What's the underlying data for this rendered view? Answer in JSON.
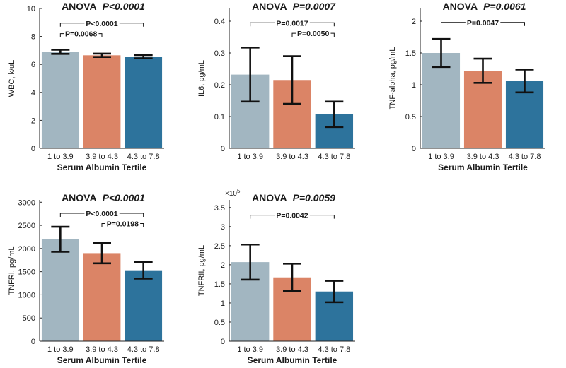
{
  "colors": {
    "tertile1": "#a2b6c1",
    "tertile2": "#db8466",
    "tertile3": "#2d739c",
    "axis": "#222222",
    "text": "#1a1a1a"
  },
  "chart_data": [
    {
      "type": "bar",
      "title_prefix": "ANOVA",
      "title_p": "P<0.0001",
      "xlabel": "Serum Albumin Tertile",
      "ylabel": "WBC, k/uL",
      "categories": [
        "1 to 3.9",
        "3.9 to 4.3",
        "4.3 to 7.8"
      ],
      "values": [
        6.9,
        6.65,
        6.55
      ],
      "errors": [
        0.15,
        0.12,
        0.12
      ],
      "ylim": [
        0,
        10
      ],
      "yticks": [
        0,
        2,
        4,
        6,
        8,
        10
      ],
      "ytick_labels": [
        "0",
        "2",
        "4",
        "6",
        "8",
        "10"
      ],
      "exponent_label": "",
      "comparisons": [
        {
          "from": 0,
          "to": 2,
          "label": "P<0.0001",
          "level": 8.95
        },
        {
          "from": 0,
          "to": 1,
          "label": "P=0.0068",
          "level": 8.2
        }
      ]
    },
    {
      "type": "bar",
      "title_prefix": "ANOVA",
      "title_p": "P=0.0007",
      "xlabel": "",
      "ylabel": "IL6, pg/mL",
      "categories": [
        "1 to 3.9",
        "3.9 to 4.3",
        "4.3 to 7.8"
      ],
      "values": [
        0.232,
        0.215,
        0.107
      ],
      "errors": [
        0.085,
        0.075,
        0.04
      ],
      "ylim": [
        0,
        0.44
      ],
      "yticks": [
        0,
        0.1,
        0.2,
        0.3,
        0.4
      ],
      "ytick_labels": [
        "0",
        "0.1",
        "0.2",
        "0.3",
        "0.4"
      ],
      "exponent_label": "",
      "comparisons": [
        {
          "from": 0,
          "to": 2,
          "label": "P=0.0017",
          "level": 0.395
        },
        {
          "from": 1,
          "to": 2,
          "label": "P=0.0050",
          "level": 0.362
        }
      ]
    },
    {
      "type": "bar",
      "title_prefix": "ANOVA",
      "title_p": "P=0.0061",
      "xlabel": "Serum Albumin Tertile",
      "ylabel": "TNF-alpha, pg/mL",
      "categories": [
        "1 to 3.9",
        "3.9 to 4.3",
        "4.3 to 7.8"
      ],
      "values": [
        1.5,
        1.22,
        1.06
      ],
      "errors": [
        0.22,
        0.19,
        0.18
      ],
      "ylim": [
        0,
        2.2
      ],
      "yticks": [
        0,
        0.5,
        1,
        1.5,
        2
      ],
      "ytick_labels": [
        "0",
        "0.5",
        "1",
        "1.5",
        "2"
      ],
      "exponent_label": "",
      "comparisons": [
        {
          "from": 0,
          "to": 2,
          "label": "P=0.0047",
          "level": 1.98
        }
      ]
    },
    {
      "type": "bar",
      "title_prefix": "ANOVA",
      "title_p": "P<0.0001",
      "xlabel": "Serum Albumin Tertile",
      "ylabel": "TNFRI, pg/mL",
      "categories": [
        "1 to 3.9",
        "3.9 to 4.3",
        "4.3 to 7.8"
      ],
      "values": [
        2200,
        1900,
        1530
      ],
      "errors": [
        270,
        220,
        180
      ],
      "ylim": [
        0,
        3050
      ],
      "yticks": [
        0,
        500,
        1000,
        1500,
        2000,
        2500,
        3000
      ],
      "ytick_labels": [
        "0",
        "500",
        "1000",
        "1500",
        "2000",
        "2500",
        "3000"
      ],
      "exponent_label": "",
      "comparisons": [
        {
          "from": 0,
          "to": 2,
          "label": "P<0.0001",
          "level": 2760
        },
        {
          "from": 1,
          "to": 2,
          "label": "P=0.0198",
          "level": 2540
        }
      ]
    },
    {
      "type": "bar",
      "title_prefix": "ANOVA",
      "title_p": "P=0.0059",
      "xlabel": "Serum Albumin Tertile",
      "ylabel": "TNFRII, pg/mL",
      "categories": [
        "1 to 3.9",
        "3.9 to 4.3",
        "4.3 to 7.8"
      ],
      "values": [
        207000,
        167000,
        130000
      ],
      "errors": [
        46000,
        36000,
        28000
      ],
      "ylim": [
        0,
        370000
      ],
      "yticks": [
        0,
        50000,
        100000,
        150000,
        200000,
        250000,
        300000,
        350000
      ],
      "ytick_labels": [
        "0",
        "0.5",
        "1",
        "1.5",
        "2",
        "2.5",
        "3",
        "3.5"
      ],
      "exponent_label": "×10",
      "exponent_power": "5",
      "comparisons": [
        {
          "from": 0,
          "to": 2,
          "label": "P=0.0042",
          "level": 330000
        }
      ]
    }
  ]
}
